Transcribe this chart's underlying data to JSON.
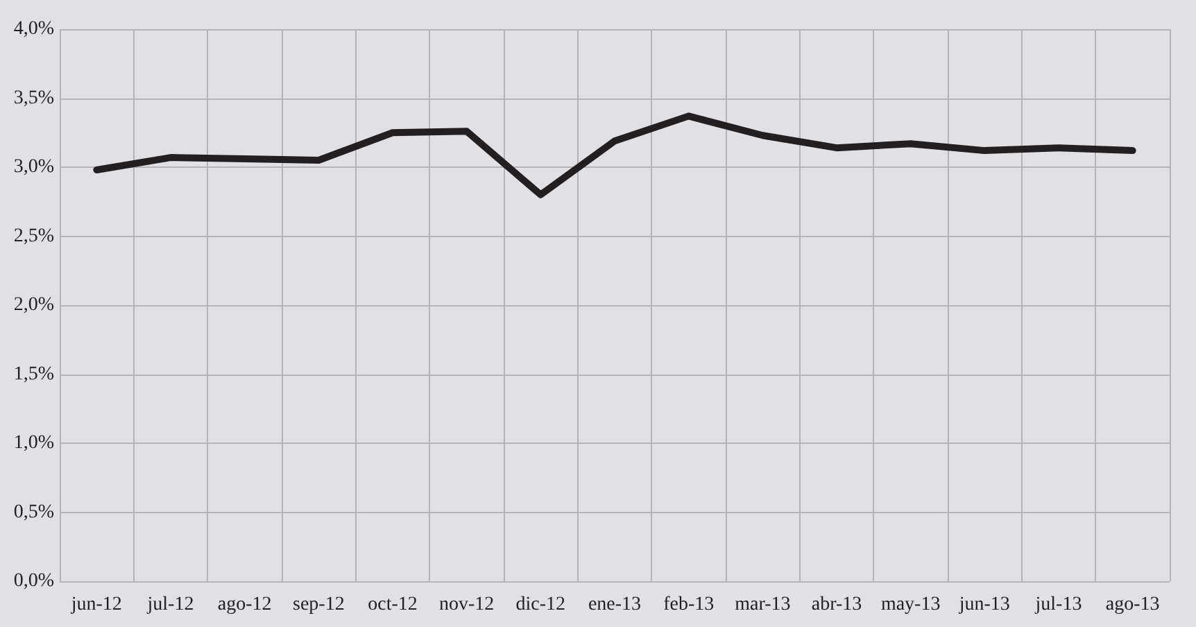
{
  "chart_data": {
    "type": "line",
    "categories": [
      "jun-12",
      "jul-12",
      "ago-12",
      "sep-12",
      "oct-12",
      "nov-12",
      "dic-12",
      "ene-13",
      "feb-13",
      "mar-13",
      "abr-13",
      "may-13",
      "jun-13",
      "jul-13",
      "ago-13"
    ],
    "series": [
      {
        "color": "#231f20",
        "values": [
          2.98,
          3.07,
          3.06,
          3.05,
          3.25,
          3.26,
          2.8,
          3.19,
          3.37,
          3.23,
          3.14,
          3.17,
          3.12,
          3.14,
          3.12
        ]
      }
    ],
    "ylim": [
      0,
      4
    ],
    "yticks": [
      {
        "value": 0,
        "label": "0,0%"
      },
      {
        "value": 0.5,
        "label": "0,5%"
      },
      {
        "value": 1,
        "label": "1,0%"
      },
      {
        "value": 1.5,
        "label": "1,5%"
      },
      {
        "value": 2,
        "label": "2,0%"
      },
      {
        "value": 2.5,
        "label": "2,5%"
      },
      {
        "value": 3,
        "label": "3,0%"
      },
      {
        "value": 3.5,
        "label": "3,5%"
      },
      {
        "value": 4,
        "label": "4,0%"
      }
    ],
    "grid": true,
    "marker": "none",
    "line_style": "solid"
  }
}
